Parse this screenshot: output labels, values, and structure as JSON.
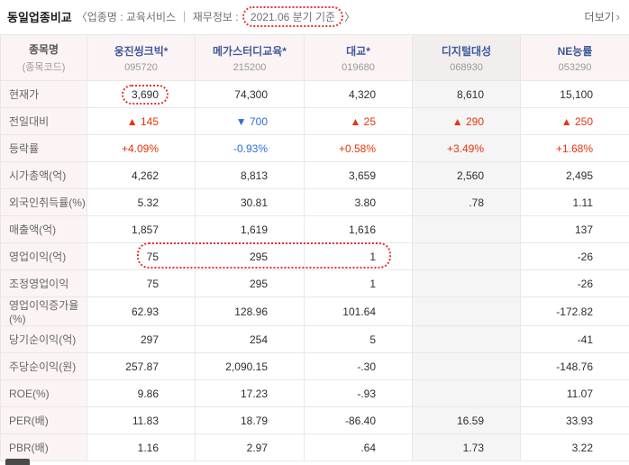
{
  "colors": {
    "up": "#e8340c",
    "down": "#2d6ee0",
    "link": "#3f5a9d",
    "annot": "#e53232"
  },
  "header": {
    "title": "동일업종비교",
    "subtitle_prefix": "〈업종명 : 교육서비스 ｜ 재무정보 : ",
    "period": "2021.06 분기 기준",
    "subtitle_suffix": "〉",
    "more_label": "더보기",
    "more_arrow": "›"
  },
  "table": {
    "corner_header": {
      "title": "종목명",
      "subtitle": "(종목코드)"
    },
    "columns": [
      {
        "name": "웅진씽크빅*",
        "code": "095720",
        "shaded": false
      },
      {
        "name": "메가스터디교육*",
        "code": "215200",
        "shaded": false
      },
      {
        "name": "대교*",
        "code": "019680",
        "shaded": false
      },
      {
        "name": "디지털대성",
        "code": "068930",
        "shaded": true
      },
      {
        "name": "NE능률",
        "code": "053290",
        "shaded": false
      }
    ],
    "rows": [
      {
        "label": "현재가",
        "values": [
          "3,690",
          "74,300",
          "4,320",
          "8,610",
          "15,100"
        ]
      },
      {
        "label": "전일대비",
        "values": [
          "▲ 145",
          "▼ 700",
          "▲ 25",
          "▲ 290",
          "▲ 250"
        ],
        "value_styles": [
          "up",
          "down",
          "up",
          "up",
          "up"
        ]
      },
      {
        "label": "등락률",
        "values": [
          "+4.09%",
          "-0.93%",
          "+0.58%",
          "+3.49%",
          "+1.68%"
        ],
        "value_styles": [
          "up",
          "down",
          "up",
          "up",
          "up"
        ]
      },
      {
        "label": "시가총액(억)",
        "values": [
          "4,262",
          "8,813",
          "3,659",
          "2,560",
          "2,495"
        ]
      },
      {
        "label": "외국인취득률(%)",
        "values": [
          "5.32",
          "30.81",
          "3.80",
          ".78",
          "1.11"
        ]
      },
      {
        "label": "매출액(억)",
        "values": [
          "1,857",
          "1,619",
          "1,616",
          "",
          "137"
        ]
      },
      {
        "label": "영업이익(억)",
        "values": [
          "75",
          "295",
          "1",
          "",
          "-26"
        ]
      },
      {
        "label": "조정영업이익",
        "values": [
          "75",
          "295",
          "1",
          "",
          "-26"
        ]
      },
      {
        "label": "영업이익증가율(%)",
        "values": [
          "62.93",
          "128.96",
          "101.64",
          "",
          "-172.82"
        ]
      },
      {
        "label": "당기순이익(억)",
        "values": [
          "297",
          "254",
          "5",
          "",
          "-41"
        ]
      },
      {
        "label": "주당순이익(원)",
        "values": [
          "257.87",
          "2,090.15",
          "-.30",
          "",
          "-148.76"
        ]
      },
      {
        "label": "ROE(%)",
        "values": [
          "9.86",
          "17.23",
          "-.93",
          "",
          "11.07"
        ]
      },
      {
        "label": "PER(배)",
        "values": [
          "11.83",
          "18.79",
          "-86.40",
          "16.59",
          "33.93"
        ]
      },
      {
        "label": "PBR(배)",
        "values": [
          "1.16",
          "2.97",
          ".64",
          "1.73",
          "3.22"
        ]
      }
    ]
  },
  "annotations": {
    "period_highlighted": true,
    "current_price_box": {
      "row": 0,
      "col": 0
    },
    "operating_profit_box": {
      "row": 6,
      "col_start": 0,
      "col_end": 2
    }
  }
}
